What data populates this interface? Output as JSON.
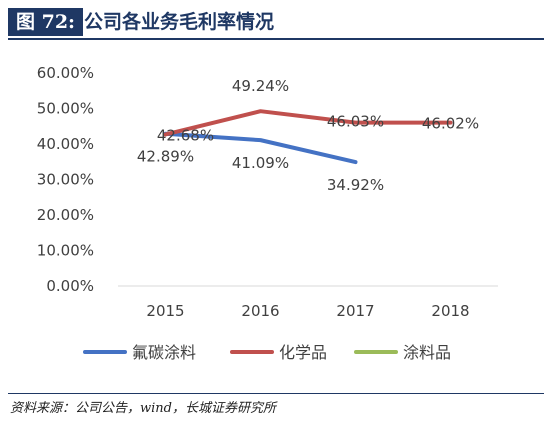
{
  "header": {
    "figure_label": "图 72:",
    "title": "公司各业务毛利率情况"
  },
  "source": "资料来源：公司公告，wind，长城证券研究所",
  "colors": {
    "series_1": "#4472c4",
    "series_2": "#c0504d",
    "series_3": "#9bbb59",
    "header_bg": "#1f3864"
  },
  "chart_data": {
    "type": "line",
    "x": [
      "2015",
      "2016",
      "2017",
      "2018"
    ],
    "ylim": [
      0,
      60
    ],
    "yticks": [
      "0.00%",
      "10.00%",
      "20.00%",
      "30.00%",
      "40.00%",
      "50.00%",
      "60.00%"
    ],
    "ytick_values": [
      0,
      10,
      20,
      30,
      40,
      50,
      60
    ],
    "grid": false,
    "legend": "bottom",
    "series": [
      {
        "name": "氟碳涂料",
        "values": [
          42.89,
          41.09,
          34.92,
          null
        ],
        "labels": [
          "42.89%",
          "41.09%",
          "34.92%",
          ""
        ]
      },
      {
        "name": "化学品",
        "values": [
          42.68,
          49.24,
          46.03,
          46.02
        ],
        "labels": [
          "42.68%",
          "49.24%",
          "46.03%",
          "46.02%"
        ]
      },
      {
        "name": "涂料品",
        "values": [
          null,
          null,
          null,
          null
        ],
        "labels": [
          "",
          "",
          "",
          ""
        ]
      }
    ]
  }
}
